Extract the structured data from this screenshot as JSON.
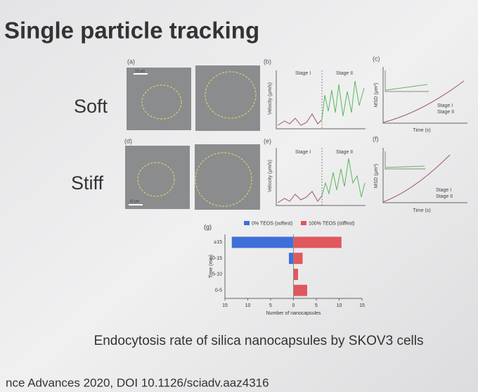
{
  "title": "Single particle tracking",
  "row_labels": [
    "Soft",
    "Stiff"
  ],
  "panels": [
    {
      "label": "(a)",
      "scale_bar": "10 μm"
    },
    {
      "label": "(b)",
      "y_label": "Velocity (μm/s)",
      "stages": [
        "Stage I",
        "Stage II"
      ]
    },
    {
      "label": "(c)",
      "y_label": "MSD (μm²)",
      "x_label": "Time (s)",
      "legend": [
        "Stage I",
        "Stage II"
      ]
    },
    {
      "label": "(d)",
      "scale_bar": "10 μm"
    },
    {
      "label": "(e)",
      "y_label": "Velocity (μm/s)",
      "stages": [
        "Stage I",
        "Stage II"
      ]
    },
    {
      "label": "(f)",
      "y_label": "MSD (μm²)",
      "x_label": "Time (s)",
      "legend": [
        "Stage I",
        "Stage II"
      ]
    }
  ],
  "chart_data": {
    "type": "bar",
    "orientation": "horizontal",
    "label": "(g)",
    "categories": [
      "≥15",
      "10-15",
      "5-10",
      "0-5"
    ],
    "series": [
      {
        "name": "0% TEOS (softest)",
        "color": "#3f6fd8",
        "values": [
          -13.5,
          -1,
          0,
          0
        ]
      },
      {
        "name": "100% TEOS (stiffest)",
        "color": "#e0575e",
        "values": [
          10.5,
          2,
          1,
          3
        ]
      }
    ],
    "xlim": [
      -15,
      15
    ],
    "xticks": [
      {
        "value": -15,
        "label": "15"
      },
      {
        "value": -10,
        "label": "10"
      },
      {
        "value": -5,
        "label": "5"
      },
      0,
      5,
      10,
      15
    ],
    "x_label": "Number of nanocapsules",
    "y_label": "Time (min)",
    "legend_position": "top"
  },
  "caption": "Endocytosis rate of silica nanocapsules by SKOV3 cells",
  "citation": "nce Advances 2020, DOI 10.1126/sciadv.aaz4316"
}
